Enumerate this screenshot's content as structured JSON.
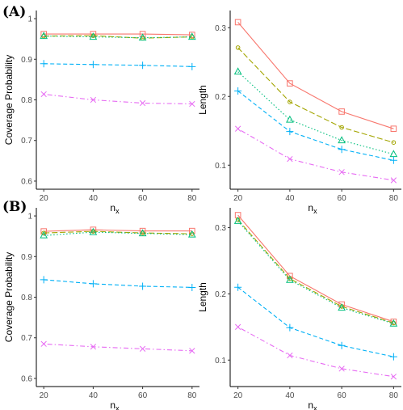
{
  "panel_labels": {
    "A": "(A)",
    "B": "(B)"
  },
  "axis_labels": {
    "x_main": "n",
    "x_sub": "x",
    "coverage": "Coverage Probability",
    "length": "Length"
  },
  "series_colors": [
    "#F8766D",
    "#A3A500",
    "#00BF7D",
    "#00B0F6",
    "#E76BF3"
  ],
  "chart_data": [
    {
      "type": "line",
      "panel": "A",
      "x": [
        20,
        40,
        60,
        80
      ],
      "xlabel": "nx",
      "ylabel": "Coverage Probability",
      "xlim": [
        17,
        83
      ],
      "ylim": [
        0.58,
        1.02
      ],
      "yticks": [
        0.6,
        0.7,
        0.8,
        0.9,
        1.0
      ],
      "series": [
        {
          "values": [
            0.962,
            0.962,
            0.962,
            0.96
          ],
          "color": "#F8766D",
          "marker": "square",
          "dash": "solid"
        },
        {
          "values": [
            0.957,
            0.958,
            0.952,
            0.955
          ],
          "color": "#A3A500",
          "marker": "circle",
          "dash": "longdash"
        },
        {
          "values": [
            0.957,
            0.955,
            0.953,
            0.955
          ],
          "color": "#00BF7D",
          "marker": "triangle",
          "dash": "dotted"
        },
        {
          "values": [
            0.889,
            0.887,
            0.885,
            0.882
          ],
          "color": "#00B0F6",
          "marker": "plus",
          "dash": "dashed"
        },
        {
          "values": [
            0.814,
            0.8,
            0.792,
            0.79
          ],
          "color": "#E76BF3",
          "marker": "cross",
          "dash": "dotdash"
        }
      ]
    },
    {
      "type": "line",
      "panel": "A",
      "x": [
        20,
        40,
        60,
        80
      ],
      "xlabel": "nx",
      "ylabel": "Length",
      "xlim": [
        17,
        83
      ],
      "ylim": [
        0.065,
        0.325
      ],
      "yticks": [
        0.1,
        0.2,
        0.3
      ],
      "series": [
        {
          "values": [
            0.308,
            0.219,
            0.178,
            0.153
          ],
          "color": "#F8766D",
          "marker": "square",
          "dash": "solid"
        },
        {
          "values": [
            0.271,
            0.192,
            0.155,
            0.133
          ],
          "color": "#A3A500",
          "marker": "circle",
          "dash": "longdash"
        },
        {
          "values": [
            0.236,
            0.166,
            0.136,
            0.116
          ],
          "color": "#00BF7D",
          "marker": "triangle",
          "dash": "dotted"
        },
        {
          "values": [
            0.208,
            0.149,
            0.123,
            0.107
          ],
          "color": "#00B0F6",
          "marker": "plus",
          "dash": "dashed"
        },
        {
          "values": [
            0.153,
            0.109,
            0.09,
            0.078
          ],
          "color": "#E76BF3",
          "marker": "cross",
          "dash": "dotdash"
        }
      ]
    },
    {
      "type": "line",
      "panel": "B",
      "x": [
        20,
        40,
        60,
        80
      ],
      "xlabel": "nx",
      "ylabel": "Coverage Probability",
      "xlim": [
        17,
        83
      ],
      "ylim": [
        0.58,
        1.02
      ],
      "yticks": [
        0.6,
        0.7,
        0.8,
        0.9,
        1.0
      ],
      "series": [
        {
          "values": [
            0.962,
            0.966,
            0.963,
            0.963
          ],
          "color": "#F8766D",
          "marker": "square",
          "dash": "solid"
        },
        {
          "values": [
            0.958,
            0.962,
            0.958,
            0.956
          ],
          "color": "#A3A500",
          "marker": "circle",
          "dash": "longdash"
        },
        {
          "values": [
            0.952,
            0.96,
            0.957,
            0.954
          ],
          "color": "#00BF7D",
          "marker": "triangle",
          "dash": "dotted"
        },
        {
          "values": [
            0.843,
            0.833,
            0.827,
            0.824
          ],
          "color": "#00B0F6",
          "marker": "plus",
          "dash": "dashed"
        },
        {
          "values": [
            0.685,
            0.678,
            0.673,
            0.668
          ],
          "color": "#E76BF3",
          "marker": "cross",
          "dash": "dotdash"
        }
      ]
    },
    {
      "type": "line",
      "panel": "B",
      "x": [
        20,
        40,
        60,
        80
      ],
      "xlabel": "nx",
      "ylabel": "Length",
      "xlim": [
        17,
        83
      ],
      "ylim": [
        0.06,
        0.33
      ],
      "yticks": [
        0.1,
        0.2,
        0.3
      ],
      "series": [
        {
          "values": [
            0.319,
            0.227,
            0.184,
            0.158
          ],
          "color": "#F8766D",
          "marker": "square",
          "dash": "solid"
        },
        {
          "values": [
            0.312,
            0.223,
            0.181,
            0.156
          ],
          "color": "#A3A500",
          "marker": "circle",
          "dash": "longdash"
        },
        {
          "values": [
            0.31,
            0.221,
            0.179,
            0.155
          ],
          "color": "#00BF7D",
          "marker": "triangle",
          "dash": "dotted"
        },
        {
          "values": [
            0.21,
            0.149,
            0.122,
            0.105
          ],
          "color": "#00B0F6",
          "marker": "plus",
          "dash": "dashed"
        },
        {
          "values": [
            0.15,
            0.107,
            0.087,
            0.075
          ],
          "color": "#E76BF3",
          "marker": "cross",
          "dash": "dotdash"
        }
      ]
    }
  ]
}
